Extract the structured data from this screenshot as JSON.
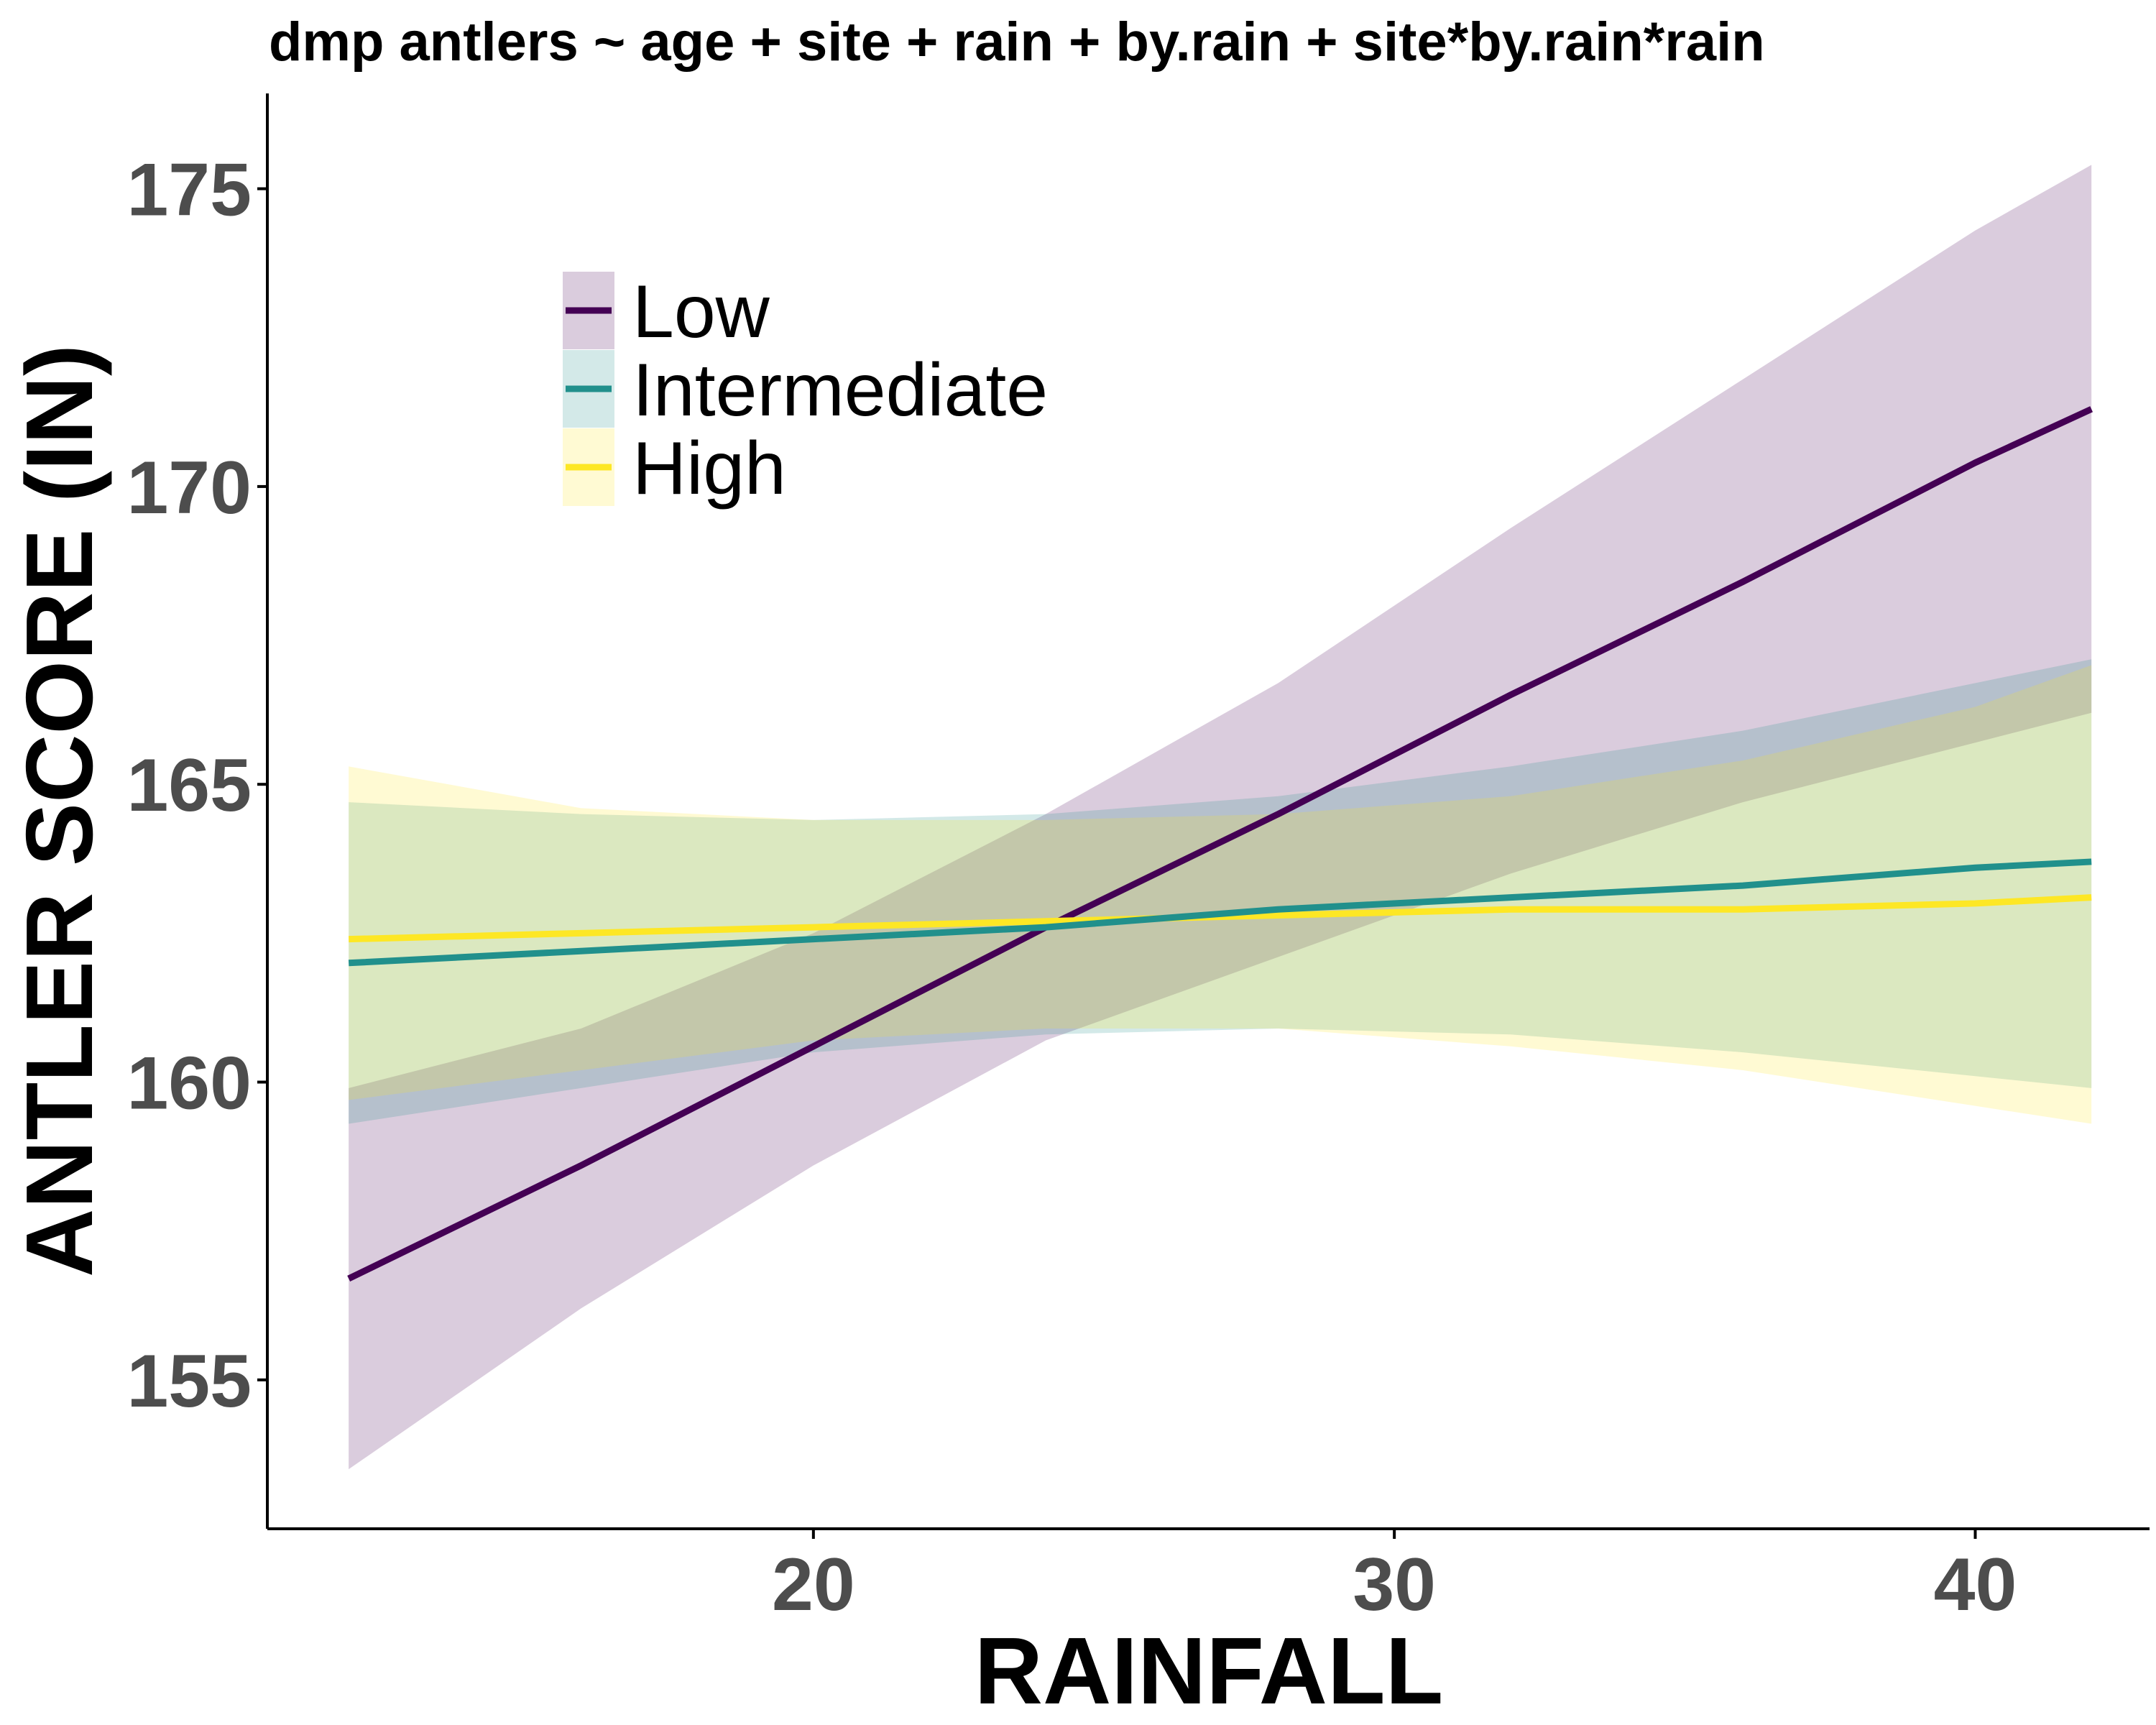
{
  "chart_data": {
    "type": "line",
    "title": "dmp antlers ~ age + site + rain + by.rain + site*by.rain*rain",
    "xlabel": "RAINFALL",
    "ylabel": "ANTLER SCORE (IN)",
    "xlim": [
      10.6,
      43.0
    ],
    "ylim": [
      152.5,
      176.6
    ],
    "x_ticks": [
      20,
      30,
      40
    ],
    "x_tick_labels": [
      "20",
      "30",
      "40"
    ],
    "y_ticks": [
      155,
      160,
      165,
      170,
      175
    ],
    "y_tick_labels": [
      "155",
      "160",
      "165",
      "170",
      "175"
    ],
    "grid": false,
    "legend_position": "top-left",
    "x": [
      12.0,
      16.0,
      20.0,
      24.0,
      28.0,
      32.0,
      36.0,
      40.0,
      42.0
    ],
    "series": [
      {
        "name": "Low",
        "color": "#440154",
        "fill_color": "#dacbde",
        "values": [
          156.7,
          158.6,
          160.6,
          162.6,
          164.5,
          166.5,
          168.4,
          170.4,
          171.3
        ],
        "lower": [
          153.5,
          156.2,
          158.6,
          160.7,
          162.1,
          163.5,
          164.7,
          165.7,
          166.2
        ],
        "upper": [
          159.9,
          160.9,
          162.5,
          164.5,
          166.7,
          169.3,
          171.8,
          174.3,
          175.4
        ]
      },
      {
        "name": "Intermediate",
        "color": "#21908c",
        "fill_color": "#d1e8e7",
        "values": [
          162.0,
          162.2,
          162.4,
          162.6,
          162.9,
          163.1,
          163.3,
          163.6,
          163.7
        ],
        "lower": [
          159.3,
          159.9,
          160.5,
          160.8,
          160.9,
          160.8,
          160.5,
          160.1,
          159.9
        ],
        "upper": [
          164.7,
          164.5,
          164.4,
          164.5,
          164.8,
          165.3,
          165.9,
          166.7,
          167.1
        ]
      },
      {
        "name": "High",
        "color": "#fde725",
        "fill_color": "#fff9d1",
        "values": [
          162.4,
          162.5,
          162.6,
          162.7,
          162.8,
          162.9,
          162.9,
          163.0,
          163.1
        ],
        "lower": [
          159.7,
          160.2,
          160.7,
          160.9,
          160.9,
          160.6,
          160.2,
          159.6,
          159.3
        ],
        "upper": [
          165.3,
          164.6,
          164.4,
          164.4,
          164.5,
          164.8,
          165.4,
          166.3,
          167.0
        ]
      }
    ]
  }
}
